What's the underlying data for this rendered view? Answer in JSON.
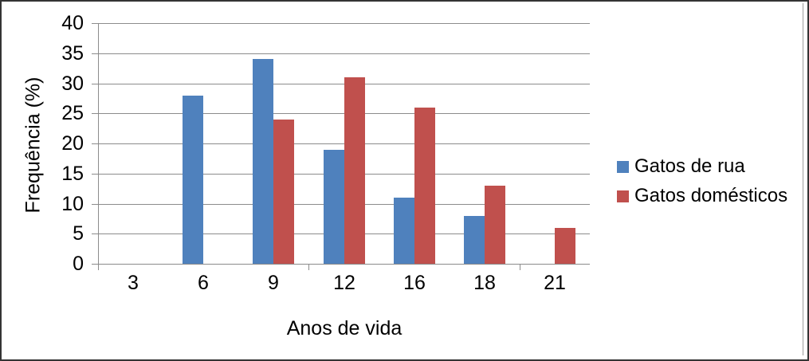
{
  "chart_data": {
    "type": "bar",
    "categories": [
      "3",
      "6",
      "9",
      "12",
      "16",
      "18",
      "21"
    ],
    "series": [
      {
        "name": "Gatos de rua",
        "color": "#4F81BD",
        "values": [
          0,
          28,
          34,
          19,
          11,
          8,
          0
        ]
      },
      {
        "name": "Gatos domésticos",
        "color": "#C0504D",
        "values": [
          0,
          0,
          24,
          31,
          26,
          13,
          6
        ]
      }
    ],
    "xlabel": "Anos de vida",
    "ylabel": "Frequência (%)",
    "ylim": [
      0,
      40
    ],
    "ytick_step": 5,
    "yticks": [
      0,
      5,
      10,
      15,
      20,
      25,
      30,
      35,
      40
    ],
    "grid": true,
    "legend_position": "right",
    "colors": {
      "gridline": "#8C8C8C",
      "axis": "#8C8C8C",
      "text": "#000000",
      "background": "#FFFFFF",
      "outer_border": "#343434",
      "chart_edge_line": "#9D9D9D"
    }
  }
}
